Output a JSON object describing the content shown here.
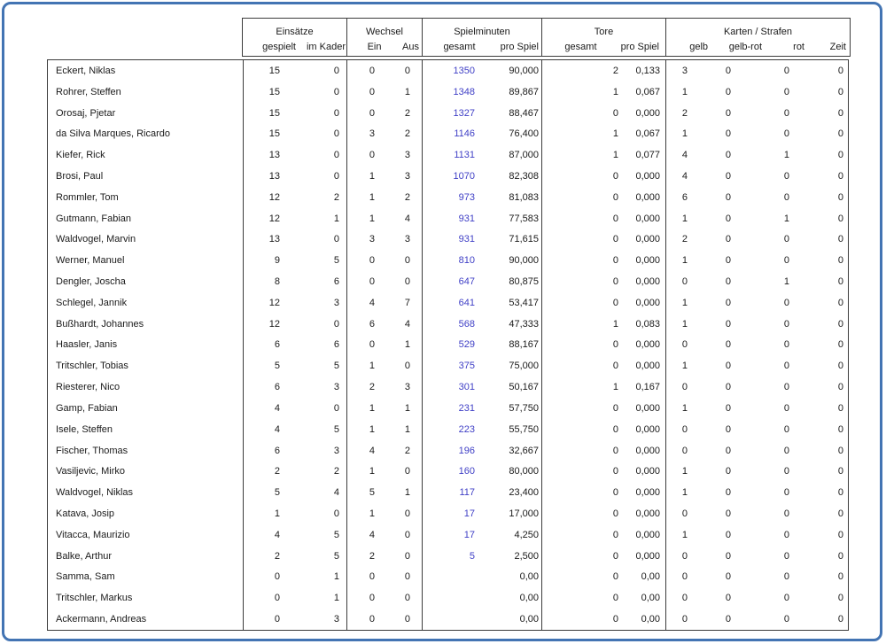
{
  "table": {
    "groups": [
      {
        "label": "Einsätze",
        "columns": [
          "gespielt",
          "im Kader"
        ]
      },
      {
        "label": "Wechsel",
        "columns": [
          "Ein",
          "Aus"
        ]
      },
      {
        "label": "Spielminuten",
        "columns": [
          "gesamt",
          "pro Spiel"
        ]
      },
      {
        "label": "Tore",
        "columns": [
          "gesamt",
          "pro Spiel"
        ]
      },
      {
        "label": "Karten / Strafen",
        "columns": [
          "gelb",
          "gelb-rot",
          "rot",
          "Zeit"
        ]
      }
    ],
    "rows": [
      {
        "name": "Eckert, Niklas",
        "gespielt": "15",
        "im_kader": "0",
        "ein": "0",
        "aus": "0",
        "min_gesamt": "1350",
        "min_pro_spiel": "90,000",
        "tore_gesamt": "2",
        "tore_pro_spiel": "0,133",
        "gelb": "3",
        "gelb_rot": "0",
        "rot": "0",
        "zeit": "0"
      },
      {
        "name": "Rohrer, Steffen",
        "gespielt": "15",
        "im_kader": "0",
        "ein": "0",
        "aus": "1",
        "min_gesamt": "1348",
        "min_pro_spiel": "89,867",
        "tore_gesamt": "1",
        "tore_pro_spiel": "0,067",
        "gelb": "1",
        "gelb_rot": "0",
        "rot": "0",
        "zeit": "0"
      },
      {
        "name": "Orosaj, Pjetar",
        "gespielt": "15",
        "im_kader": "0",
        "ein": "0",
        "aus": "2",
        "min_gesamt": "1327",
        "min_pro_spiel": "88,467",
        "tore_gesamt": "0",
        "tore_pro_spiel": "0,000",
        "gelb": "2",
        "gelb_rot": "0",
        "rot": "0",
        "zeit": "0"
      },
      {
        "name": "da Silva Marques, Ricardo",
        "gespielt": "15",
        "im_kader": "0",
        "ein": "3",
        "aus": "2",
        "min_gesamt": "1146",
        "min_pro_spiel": "76,400",
        "tore_gesamt": "1",
        "tore_pro_spiel": "0,067",
        "gelb": "1",
        "gelb_rot": "0",
        "rot": "0",
        "zeit": "0"
      },
      {
        "name": "Kiefer, Rick",
        "gespielt": "13",
        "im_kader": "0",
        "ein": "0",
        "aus": "3",
        "min_gesamt": "1131",
        "min_pro_spiel": "87,000",
        "tore_gesamt": "1",
        "tore_pro_spiel": "0,077",
        "gelb": "4",
        "gelb_rot": "0",
        "rot": "1",
        "zeit": "0"
      },
      {
        "name": "Brosi, Paul",
        "gespielt": "13",
        "im_kader": "0",
        "ein": "1",
        "aus": "3",
        "min_gesamt": "1070",
        "min_pro_spiel": "82,308",
        "tore_gesamt": "0",
        "tore_pro_spiel": "0,000",
        "gelb": "4",
        "gelb_rot": "0",
        "rot": "0",
        "zeit": "0"
      },
      {
        "name": "Rommler, Tom",
        "gespielt": "12",
        "im_kader": "2",
        "ein": "1",
        "aus": "2",
        "min_gesamt": "973",
        "min_pro_spiel": "81,083",
        "tore_gesamt": "0",
        "tore_pro_spiel": "0,000",
        "gelb": "6",
        "gelb_rot": "0",
        "rot": "0",
        "zeit": "0"
      },
      {
        "name": "Gutmann, Fabian",
        "gespielt": "12",
        "im_kader": "1",
        "ein": "1",
        "aus": "4",
        "min_gesamt": "931",
        "min_pro_spiel": "77,583",
        "tore_gesamt": "0",
        "tore_pro_spiel": "0,000",
        "gelb": "1",
        "gelb_rot": "0",
        "rot": "1",
        "zeit": "0"
      },
      {
        "name": "Waldvogel, Marvin",
        "gespielt": "13",
        "im_kader": "0",
        "ein": "3",
        "aus": "3",
        "min_gesamt": "931",
        "min_pro_spiel": "71,615",
        "tore_gesamt": "0",
        "tore_pro_spiel": "0,000",
        "gelb": "2",
        "gelb_rot": "0",
        "rot": "0",
        "zeit": "0"
      },
      {
        "name": "Werner, Manuel",
        "gespielt": "9",
        "im_kader": "5",
        "ein": "0",
        "aus": "0",
        "min_gesamt": "810",
        "min_pro_spiel": "90,000",
        "tore_gesamt": "0",
        "tore_pro_spiel": "0,000",
        "gelb": "1",
        "gelb_rot": "0",
        "rot": "0",
        "zeit": "0"
      },
      {
        "name": "Dengler, Joscha",
        "gespielt": "8",
        "im_kader": "6",
        "ein": "0",
        "aus": "0",
        "min_gesamt": "647",
        "min_pro_spiel": "80,875",
        "tore_gesamt": "0",
        "tore_pro_spiel": "0,000",
        "gelb": "0",
        "gelb_rot": "0",
        "rot": "1",
        "zeit": "0"
      },
      {
        "name": "Schlegel, Jannik",
        "gespielt": "12",
        "im_kader": "3",
        "ein": "4",
        "aus": "7",
        "min_gesamt": "641",
        "min_pro_spiel": "53,417",
        "tore_gesamt": "0",
        "tore_pro_spiel": "0,000",
        "gelb": "1",
        "gelb_rot": "0",
        "rot": "0",
        "zeit": "0"
      },
      {
        "name": "Bußhardt, Johannes",
        "gespielt": "12",
        "im_kader": "0",
        "ein": "6",
        "aus": "4",
        "min_gesamt": "568",
        "min_pro_spiel": "47,333",
        "tore_gesamt": "1",
        "tore_pro_spiel": "0,083",
        "gelb": "1",
        "gelb_rot": "0",
        "rot": "0",
        "zeit": "0"
      },
      {
        "name": "Haasler, Janis",
        "gespielt": "6",
        "im_kader": "6",
        "ein": "0",
        "aus": "1",
        "min_gesamt": "529",
        "min_pro_spiel": "88,167",
        "tore_gesamt": "0",
        "tore_pro_spiel": "0,000",
        "gelb": "0",
        "gelb_rot": "0",
        "rot": "0",
        "zeit": "0"
      },
      {
        "name": "Tritschler, Tobias",
        "gespielt": "5",
        "im_kader": "5",
        "ein": "1",
        "aus": "0",
        "min_gesamt": "375",
        "min_pro_spiel": "75,000",
        "tore_gesamt": "0",
        "tore_pro_spiel": "0,000",
        "gelb": "1",
        "gelb_rot": "0",
        "rot": "0",
        "zeit": "0"
      },
      {
        "name": "Riesterer, Nico",
        "gespielt": "6",
        "im_kader": "3",
        "ein": "2",
        "aus": "3",
        "min_gesamt": "301",
        "min_pro_spiel": "50,167",
        "tore_gesamt": "1",
        "tore_pro_spiel": "0,167",
        "gelb": "0",
        "gelb_rot": "0",
        "rot": "0",
        "zeit": "0"
      },
      {
        "name": "Gamp, Fabian",
        "gespielt": "4",
        "im_kader": "0",
        "ein": "1",
        "aus": "1",
        "min_gesamt": "231",
        "min_pro_spiel": "57,750",
        "tore_gesamt": "0",
        "tore_pro_spiel": "0,000",
        "gelb": "1",
        "gelb_rot": "0",
        "rot": "0",
        "zeit": "0"
      },
      {
        "name": "Isele, Steffen",
        "gespielt": "4",
        "im_kader": "5",
        "ein": "1",
        "aus": "1",
        "min_gesamt": "223",
        "min_pro_spiel": "55,750",
        "tore_gesamt": "0",
        "tore_pro_spiel": "0,000",
        "gelb": "0",
        "gelb_rot": "0",
        "rot": "0",
        "zeit": "0"
      },
      {
        "name": "Fischer, Thomas",
        "gespielt": "6",
        "im_kader": "3",
        "ein": "4",
        "aus": "2",
        "min_gesamt": "196",
        "min_pro_spiel": "32,667",
        "tore_gesamt": "0",
        "tore_pro_spiel": "0,000",
        "gelb": "0",
        "gelb_rot": "0",
        "rot": "0",
        "zeit": "0"
      },
      {
        "name": "Vasiljevic, Mirko",
        "gespielt": "2",
        "im_kader": "2",
        "ein": "1",
        "aus": "0",
        "min_gesamt": "160",
        "min_pro_spiel": "80,000",
        "tore_gesamt": "0",
        "tore_pro_spiel": "0,000",
        "gelb": "1",
        "gelb_rot": "0",
        "rot": "0",
        "zeit": "0"
      },
      {
        "name": "Waldvogel, Niklas",
        "gespielt": "5",
        "im_kader": "4",
        "ein": "5",
        "aus": "1",
        "min_gesamt": "117",
        "min_pro_spiel": "23,400",
        "tore_gesamt": "0",
        "tore_pro_spiel": "0,000",
        "gelb": "1",
        "gelb_rot": "0",
        "rot": "0",
        "zeit": "0"
      },
      {
        "name": "Katava, Josip",
        "gespielt": "1",
        "im_kader": "0",
        "ein": "1",
        "aus": "0",
        "min_gesamt": "17",
        "min_pro_spiel": "17,000",
        "tore_gesamt": "0",
        "tore_pro_spiel": "0,000",
        "gelb": "0",
        "gelb_rot": "0",
        "rot": "0",
        "zeit": "0"
      },
      {
        "name": "Vitacca, Maurizio",
        "gespielt": "4",
        "im_kader": "5",
        "ein": "4",
        "aus": "0",
        "min_gesamt": "17",
        "min_pro_spiel": "4,250",
        "tore_gesamt": "0",
        "tore_pro_spiel": "0,000",
        "gelb": "1",
        "gelb_rot": "0",
        "rot": "0",
        "zeit": "0"
      },
      {
        "name": "Balke, Arthur",
        "gespielt": "2",
        "im_kader": "5",
        "ein": "2",
        "aus": "0",
        "min_gesamt": "5",
        "min_pro_spiel": "2,500",
        "tore_gesamt": "0",
        "tore_pro_spiel": "0,000",
        "gelb": "0",
        "gelb_rot": "0",
        "rot": "0",
        "zeit": "0"
      },
      {
        "name": "Samma, Sam",
        "gespielt": "0",
        "im_kader": "1",
        "ein": "0",
        "aus": "0",
        "min_gesamt": "",
        "min_pro_spiel": "0,00",
        "tore_gesamt": "0",
        "tore_pro_spiel": "0,00",
        "gelb": "0",
        "gelb_rot": "0",
        "rot": "0",
        "zeit": "0"
      },
      {
        "name": "Tritschler, Markus",
        "gespielt": "0",
        "im_kader": "1",
        "ein": "0",
        "aus": "0",
        "min_gesamt": "",
        "min_pro_spiel": "0,00",
        "tore_gesamt": "0",
        "tore_pro_spiel": "0,00",
        "gelb": "0",
        "gelb_rot": "0",
        "rot": "0",
        "zeit": "0"
      },
      {
        "name": "Ackermann, Andreas",
        "gespielt": "0",
        "im_kader": "3",
        "ein": "0",
        "aus": "0",
        "min_gesamt": "",
        "min_pro_spiel": "0,00",
        "tore_gesamt": "0",
        "tore_pro_spiel": "0,00",
        "gelb": "0",
        "gelb_rot": "0",
        "rot": "0",
        "zeit": "0"
      }
    ]
  },
  "colors": {
    "window_border": "#4374b3",
    "grid_line": "#3c3c3c",
    "minutes_total_text": "#3f3fc6",
    "text": "#1a1a1a"
  }
}
